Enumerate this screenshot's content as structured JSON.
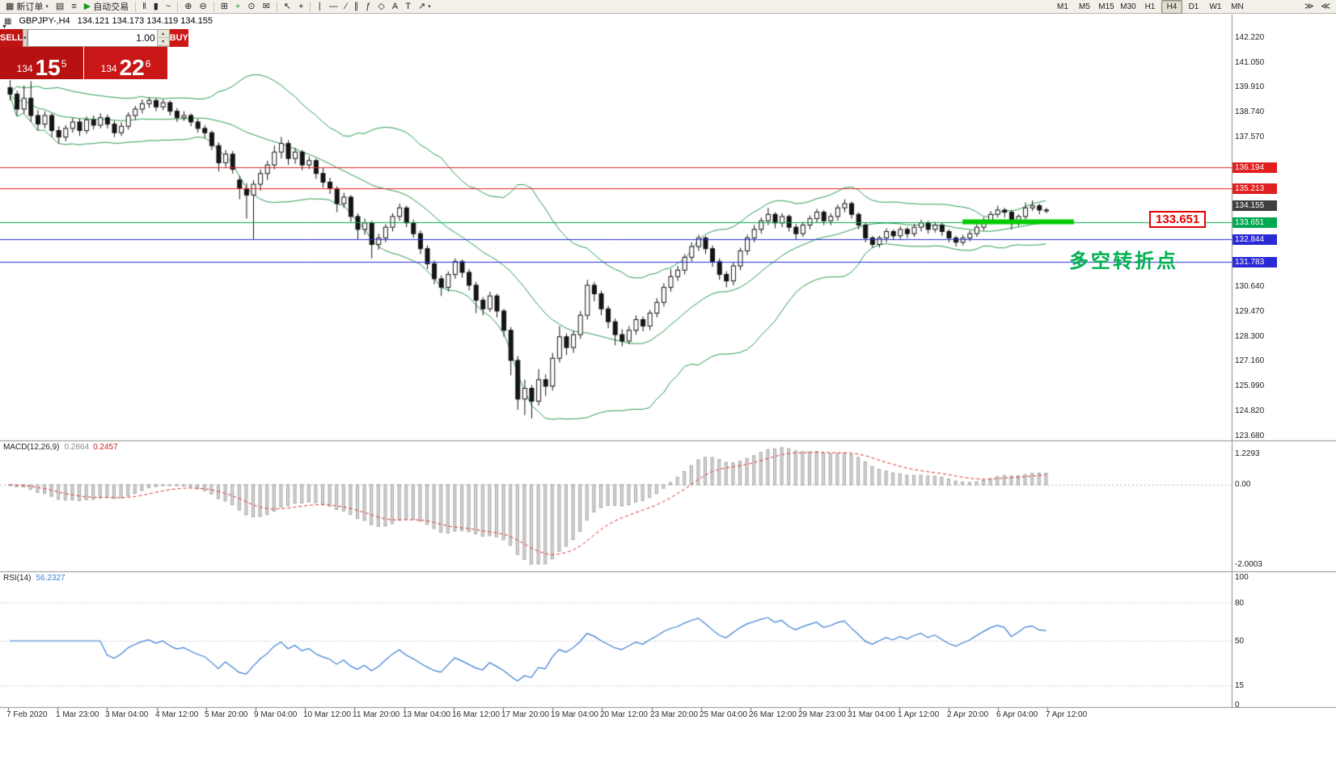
{
  "toolbar": {
    "new_order_label": "新订单",
    "autotrading_label": "自动交易",
    "timeframes": [
      "M1",
      "M5",
      "M15",
      "M30",
      "H1",
      "H4",
      "D1",
      "W1",
      "MN"
    ],
    "active_timeframe": "H4",
    "items": [
      {
        "n": "new-order-button",
        "i": "▦",
        "l": "新订单",
        "c": true
      },
      {
        "n": "chart-window-icon",
        "i": "▤"
      },
      {
        "n": "profiles-icon",
        "i": "≡"
      },
      {
        "n": "autotrading-button",
        "i": "▶",
        "l": "自动交易",
        "ic": "#1a9a1a"
      },
      {
        "t": "sep"
      },
      {
        "n": "bar-chart-icon",
        "i": "‖"
      },
      {
        "n": "candlestick-chart-icon",
        "i": "▮"
      },
      {
        "n": "line-chart-icon",
        "i": "~"
      },
      {
        "t": "sep"
      },
      {
        "n": "zoom-in-icon",
        "i": "⊕"
      },
      {
        "n": "zoom-out-icon",
        "i": "⊖"
      },
      {
        "t": "sep"
      },
      {
        "n": "tile-windows-icon",
        "i": "⊞"
      },
      {
        "n": "new-chart-icon",
        "i": "+",
        "ic": "#1a9a1a"
      },
      {
        "n": "period-icon",
        "i": "⊙"
      },
      {
        "n": "mail-icon",
        "i": "✉"
      },
      {
        "t": "sep"
      },
      {
        "n": "cursor-icon",
        "i": "↖"
      },
      {
        "n": "crosshair-icon",
        "i": "+"
      },
      {
        "t": "sep"
      },
      {
        "n": "vertical-line-icon",
        "i": "∣"
      },
      {
        "n": "horizontal-line-icon",
        "i": "―"
      },
      {
        "n": "trendline-icon",
        "i": "∕"
      },
      {
        "n": "channel-icon",
        "i": "∥"
      },
      {
        "n": "fibonacci-icon",
        "i": "ƒ"
      },
      {
        "n": "shapes-icon",
        "i": "◇"
      },
      {
        "n": "text-icon",
        "i": "A"
      },
      {
        "n": "label-icon",
        "i": "T"
      },
      {
        "n": "arrows-icon",
        "i": "↗",
        "c": true
      },
      {
        "t": "gap"
      },
      {
        "t": "timeframes"
      },
      {
        "t": "gap2"
      },
      {
        "n": "auto-scroll-icon",
        "i": "≫"
      },
      {
        "n": "chart-shift-icon",
        "i": "≪"
      }
    ]
  },
  "chart_header": {
    "icon": "▦",
    "symbol_period": "GBPJPY-,H4",
    "ohlc": "134.121 134.173 134.119 134.155"
  },
  "trade_panel": {
    "sell_label": "SELL",
    "buy_label": "BUY",
    "volume": "1.00",
    "collapse_icon": "▼",
    "dd_icon": "▾",
    "spin_up": "▴",
    "spin_down": "▾",
    "sell_big": "134",
    "sell_main": "15",
    "sell_sup": "5",
    "buy_big": "134",
    "buy_main": "22",
    "buy_sup": "6"
  },
  "annotations": {
    "price_label": "133.651",
    "cn_note": "多空转折点"
  },
  "chart_data": {
    "type": "candlestick",
    "symbol": "GBPJPY",
    "period": "H4",
    "current_price": {
      "label": "134.155",
      "value": 134.155,
      "bg": "#3f3f3f"
    },
    "price_axis_labels": [
      "142.220",
      "141.050",
      "139.910",
      "138.740",
      "137.570",
      "130.640",
      "129.470",
      "128.300",
      "127.160",
      "125.990",
      "124.820",
      "123.680"
    ],
    "hlines": [
      {
        "price": 136.194,
        "color": "#ee2222",
        "tag": "136.194",
        "tag_bg": "#e02020"
      },
      {
        "price": 135.213,
        "color": "#ee2222",
        "tag": "135.213",
        "tag_bg": "#e02020"
      },
      {
        "price": 133.651,
        "color": "#00a850",
        "tag": "133.651",
        "tag_bg": "#00a850"
      },
      {
        "price": 132.844,
        "color": "#2a2ad4",
        "tag": "132.844",
        "tag_bg": "#2a2ad4"
      },
      {
        "price": 131.783,
        "color": "#2a2ad4",
        "tag": "131.783",
        "tag_bg": "#2a2ad4"
      }
    ],
    "segment_highlight": {
      "price": 133.651,
      "from_index": 137,
      "to_index": 153,
      "color": "#00cc00",
      "thickness": 6
    },
    "bollinger": {
      "period": 20,
      "deviation": 2,
      "color": "#2e9e52"
    },
    "candle_colors": {
      "bull_fill": "#ffffff",
      "bear_fill": "#141414",
      "outline": "#141414"
    },
    "macd": {
      "label": "MACD(12,26,9)",
      "value_main": "0.2864",
      "value_signal": "0.2457",
      "fast": 12,
      "slow": 26,
      "signal": 9,
      "axis_top": "1.2293",
      "axis_zero": "0.00",
      "axis_bottom": "-2.0003",
      "bar_fill": "#d6d6d6",
      "bar_stroke": "#a3a3a3",
      "signal_color": "#e03030"
    },
    "rsi": {
      "label": "RSI(14)",
      "value": "56.2327",
      "period": 14,
      "axis": [
        "100",
        "80",
        "50",
        "15",
        "0"
      ],
      "levels": [
        80,
        50,
        15
      ],
      "line_color": "#3b7fd4"
    },
    "time_labels": [
      "7 Feb 2020",
      "1 Mar 23:00",
      "3 Mar 04:00",
      "4 Mar 12:00",
      "5 Mar 20:00",
      "9 Mar 04:00",
      "10 Mar 12:00",
      "11 Mar 20:00",
      "13 Mar 04:00",
      "16 Mar 12:00",
      "17 Mar 20:00",
      "19 Mar 04:00",
      "20 Mar 12:00",
      "23 Mar 20:00",
      "25 Mar 04:00",
      "26 Mar 12:00",
      "29 Mar 23:00",
      "31 Mar 04:00",
      "1 Apr 12:00",
      "2 Apr 20:00",
      "6 Apr 04:00",
      "7 Apr 12:00"
    ],
    "candles": [
      [
        139.9,
        140.25,
        139.3,
        139.6
      ],
      [
        139.6,
        139.75,
        138.6,
        138.9
      ],
      [
        138.9,
        140.0,
        138.7,
        139.4
      ],
      [
        139.4,
        140.2,
        138.3,
        138.6
      ],
      [
        138.6,
        138.85,
        137.9,
        138.2
      ],
      [
        138.2,
        138.8,
        138.0,
        138.6
      ],
      [
        138.6,
        138.7,
        137.6,
        137.9
      ],
      [
        137.9,
        138.1,
        137.3,
        137.6
      ],
      [
        137.6,
        138.15,
        137.4,
        138.0
      ],
      [
        138.0,
        138.5,
        137.8,
        138.3
      ],
      [
        138.3,
        138.45,
        137.65,
        137.9
      ],
      [
        137.9,
        138.55,
        137.75,
        138.4
      ],
      [
        138.4,
        138.6,
        137.95,
        138.15
      ],
      [
        138.15,
        138.7,
        138.0,
        138.5
      ],
      [
        138.5,
        138.65,
        138.0,
        138.2
      ],
      [
        138.2,
        138.35,
        137.6,
        137.8
      ],
      [
        137.8,
        138.3,
        137.65,
        138.1
      ],
      [
        138.1,
        138.75,
        137.95,
        138.6
      ],
      [
        138.6,
        139.05,
        138.4,
        138.9
      ],
      [
        138.9,
        139.35,
        138.7,
        139.15
      ],
      [
        139.15,
        139.45,
        138.95,
        139.3
      ],
      [
        139.3,
        139.4,
        138.8,
        139.0
      ],
      [
        139.0,
        139.35,
        138.85,
        139.2
      ],
      [
        139.2,
        139.3,
        138.6,
        138.8
      ],
      [
        138.8,
        138.95,
        138.3,
        138.5
      ],
      [
        138.5,
        138.8,
        138.35,
        138.6
      ],
      [
        138.6,
        138.7,
        138.1,
        138.3
      ],
      [
        138.3,
        138.45,
        137.8,
        138.0
      ],
      [
        138.0,
        138.15,
        137.55,
        137.8
      ],
      [
        137.8,
        137.9,
        137.0,
        137.2
      ],
      [
        137.2,
        137.35,
        136.0,
        136.4
      ],
      [
        136.4,
        137.0,
        136.2,
        136.8
      ],
      [
        136.8,
        136.95,
        135.9,
        136.1
      ],
      [
        135.6,
        135.8,
        134.7,
        135.2
      ],
      [
        135.2,
        135.45,
        133.8,
        134.9
      ],
      [
        134.9,
        135.6,
        132.85,
        135.4
      ],
      [
        135.4,
        136.1,
        135.1,
        135.9
      ],
      [
        135.9,
        136.5,
        135.6,
        136.3
      ],
      [
        136.3,
        137.2,
        136.1,
        136.9
      ],
      [
        136.9,
        137.6,
        136.6,
        137.3
      ],
      [
        137.3,
        137.45,
        136.3,
        136.6
      ],
      [
        136.6,
        137.1,
        136.35,
        136.9
      ],
      [
        136.9,
        137.0,
        136.05,
        136.3
      ],
      [
        136.3,
        136.7,
        136.1,
        136.5
      ],
      [
        136.5,
        136.6,
        135.65,
        135.9
      ],
      [
        135.9,
        136.15,
        135.25,
        135.5
      ],
      [
        135.5,
        135.7,
        134.95,
        135.2
      ],
      [
        135.2,
        135.3,
        134.1,
        134.5
      ],
      [
        134.5,
        135.0,
        134.3,
        134.8
      ],
      [
        134.8,
        134.9,
        133.65,
        133.9
      ],
      [
        133.9,
        134.05,
        132.8,
        133.3
      ],
      [
        133.3,
        133.8,
        133.05,
        133.6
      ],
      [
        133.6,
        133.7,
        131.95,
        132.6
      ],
      [
        132.6,
        133.1,
        132.35,
        132.9
      ],
      [
        132.9,
        133.55,
        132.7,
        133.4
      ],
      [
        133.4,
        134.05,
        133.2,
        133.9
      ],
      [
        133.9,
        134.5,
        133.7,
        134.3
      ],
      [
        134.3,
        134.4,
        133.4,
        133.6
      ],
      [
        133.6,
        133.75,
        132.9,
        133.1
      ],
      [
        133.1,
        133.25,
        132.15,
        132.4
      ],
      [
        132.4,
        132.55,
        131.45,
        131.7
      ],
      [
        131.7,
        131.85,
        130.75,
        131.0
      ],
      [
        131.0,
        131.15,
        130.2,
        130.6
      ],
      [
        130.6,
        131.35,
        130.4,
        131.2
      ],
      [
        131.2,
        131.95,
        131.0,
        131.8
      ],
      [
        131.8,
        131.9,
        131.05,
        131.3
      ],
      [
        131.3,
        131.45,
        130.45,
        130.7
      ],
      [
        130.7,
        130.85,
        129.4,
        130.0
      ],
      [
        130.0,
        130.15,
        129.3,
        129.6
      ],
      [
        129.6,
        130.4,
        129.45,
        130.2
      ],
      [
        130.2,
        130.3,
        129.2,
        129.5
      ],
      [
        129.5,
        129.6,
        128.3,
        128.6
      ],
      [
        128.6,
        128.75,
        126.5,
        127.2
      ],
      [
        127.2,
        127.4,
        124.9,
        125.4
      ],
      [
        125.4,
        126.3,
        124.65,
        125.9
      ],
      [
        125.9,
        126.05,
        124.5,
        125.3
      ],
      [
        125.3,
        126.8,
        125.1,
        126.3
      ],
      [
        126.3,
        126.55,
        125.55,
        126.0
      ],
      [
        126.0,
        127.55,
        125.8,
        127.3
      ],
      [
        127.3,
        128.8,
        127.1,
        128.3
      ],
      [
        128.3,
        128.45,
        127.45,
        127.8
      ],
      [
        127.8,
        128.6,
        127.55,
        128.4
      ],
      [
        128.4,
        129.5,
        128.2,
        129.3
      ],
      [
        129.3,
        130.95,
        129.1,
        130.7
      ],
      [
        130.7,
        130.85,
        129.95,
        130.3
      ],
      [
        130.3,
        130.45,
        129.3,
        129.6
      ],
      [
        129.6,
        129.75,
        128.7,
        129.0
      ],
      [
        129.0,
        129.15,
        127.9,
        128.4
      ],
      [
        128.4,
        128.65,
        127.85,
        128.1
      ],
      [
        128.1,
        128.8,
        127.95,
        128.6
      ],
      [
        128.6,
        129.3,
        128.4,
        129.1
      ],
      [
        129.1,
        129.25,
        128.55,
        128.8
      ],
      [
        128.8,
        129.55,
        128.6,
        129.4
      ],
      [
        129.4,
        130.1,
        129.2,
        129.9
      ],
      [
        129.9,
        130.8,
        129.7,
        130.6
      ],
      [
        130.6,
        131.45,
        130.4,
        131.1
      ],
      [
        131.1,
        131.6,
        130.9,
        131.4
      ],
      [
        131.4,
        132.15,
        131.2,
        132.0
      ],
      [
        132.0,
        132.7,
        131.8,
        132.5
      ],
      [
        132.5,
        133.05,
        132.3,
        132.9
      ],
      [
        132.9,
        133.0,
        132.15,
        132.4
      ],
      [
        132.4,
        132.55,
        131.55,
        131.8
      ],
      [
        131.8,
        131.95,
        130.95,
        131.2
      ],
      [
        131.2,
        131.35,
        130.6,
        130.9
      ],
      [
        130.9,
        131.75,
        130.7,
        131.6
      ],
      [
        131.6,
        132.45,
        131.4,
        132.3
      ],
      [
        132.3,
        133.05,
        132.1,
        132.9
      ],
      [
        132.9,
        133.5,
        132.7,
        133.3
      ],
      [
        133.3,
        133.85,
        133.1,
        133.7
      ],
      [
        133.7,
        134.3,
        133.5,
        134.0
      ],
      [
        134.0,
        134.1,
        133.35,
        133.6
      ],
      [
        133.6,
        134.05,
        133.4,
        133.9
      ],
      [
        133.9,
        134.0,
        133.2,
        133.4
      ],
      [
        133.4,
        133.55,
        132.85,
        133.1
      ],
      [
        133.1,
        133.65,
        132.95,
        133.5
      ],
      [
        133.5,
        133.95,
        133.3,
        133.8
      ],
      [
        133.8,
        134.25,
        133.6,
        134.1
      ],
      [
        134.1,
        134.2,
        133.5,
        133.7
      ],
      [
        133.7,
        134.05,
        133.5,
        133.9
      ],
      [
        133.9,
        134.45,
        133.7,
        134.3
      ],
      [
        134.3,
        134.7,
        134.1,
        134.5
      ],
      [
        134.5,
        134.6,
        133.8,
        134.0
      ],
      [
        134.0,
        134.1,
        133.3,
        133.5
      ],
      [
        133.5,
        133.6,
        132.7,
        132.9
      ],
      [
        132.9,
        133.0,
        132.45,
        132.6
      ],
      [
        132.6,
        133.0,
        132.45,
        132.9
      ],
      [
        132.9,
        133.35,
        132.7,
        133.2
      ],
      [
        133.2,
        133.3,
        132.8,
        133.0
      ],
      [
        133.0,
        133.45,
        132.85,
        133.3
      ],
      [
        133.3,
        133.4,
        132.9,
        133.1
      ],
      [
        133.1,
        133.55,
        132.95,
        133.4
      ],
      [
        133.4,
        133.75,
        133.2,
        133.6
      ],
      [
        133.6,
        133.7,
        133.1,
        133.3
      ],
      [
        133.3,
        133.65,
        133.15,
        133.5
      ],
      [
        133.5,
        133.6,
        133.0,
        133.2
      ],
      [
        133.2,
        133.3,
        132.7,
        132.9
      ],
      [
        132.9,
        133.0,
        132.5,
        132.7
      ],
      [
        132.7,
        133.05,
        132.55,
        132.9
      ],
      [
        132.9,
        133.25,
        132.75,
        133.1
      ],
      [
        133.1,
        133.55,
        132.95,
        133.4
      ],
      [
        133.4,
        133.85,
        133.25,
        133.7
      ],
      [
        133.7,
        134.15,
        133.55,
        134.0
      ],
      [
        134.0,
        134.4,
        133.85,
        134.2
      ],
      [
        134.2,
        134.3,
        133.85,
        134.1
      ],
      [
        134.1,
        134.2,
        133.3,
        133.6
      ],
      [
        133.6,
        134.0,
        133.45,
        133.9
      ],
      [
        133.9,
        134.55,
        133.75,
        134.3
      ],
      [
        134.3,
        134.65,
        134.15,
        134.4
      ],
      [
        134.4,
        134.5,
        134.0,
        134.2
      ],
      [
        134.2,
        134.3,
        134.05,
        134.16
      ]
    ]
  }
}
